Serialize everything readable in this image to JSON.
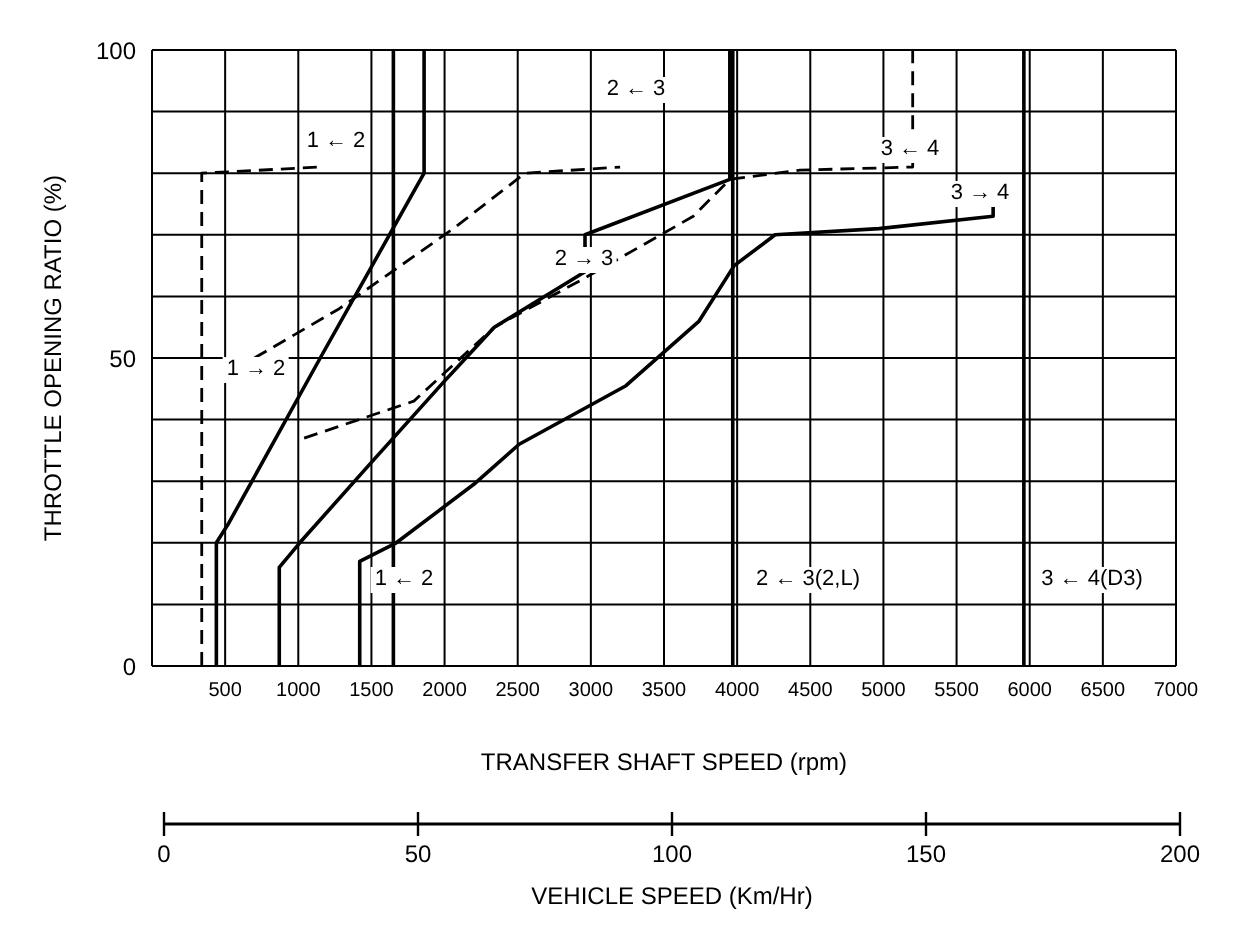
{
  "chart_data": {
    "type": "line",
    "xlabel": "TRANSFER SHAFT SPEED (rpm)",
    "ylabel": "THROTTLE OPENING RATIO (%)",
    "x2label": "VEHICLE SPEED (Km/Hr)",
    "xlim": [
      0,
      7000
    ],
    "xticks": [
      500,
      1000,
      1500,
      2000,
      2500,
      3000,
      3500,
      4000,
      4500,
      5000,
      5500,
      6000,
      6500,
      7000
    ],
    "ylim": [
      0,
      100
    ],
    "yticks": [
      0,
      {
        "value": 10,
        "label": null
      },
      {
        "value": 20,
        "label": null
      },
      {
        "value": 30,
        "label": null
      },
      {
        "value": 40,
        "label": null
      },
      50,
      {
        "value": 60,
        "label": null
      },
      {
        "value": 70,
        "label": null
      },
      {
        "value": 80,
        "label": null
      },
      {
        "value": 90,
        "label": null
      },
      100
    ],
    "x2lim": [
      0,
      200
    ],
    "x2ticks": [
      0,
      50,
      100,
      150,
      200
    ],
    "grid": true,
    "series": [
      {
        "color": "#000000",
        "line_style": "solid",
        "x": [
          440,
          440,
          520,
          1150,
          1860,
          1860
        ],
        "values": [
          0,
          20,
          23,
          50,
          80,
          100
        ]
      },
      {
        "color": "#000000",
        "line_style": "dashed",
        "x": [
          340,
          340,
          1150
        ],
        "values": [
          0,
          80,
          81
        ]
      },
      {
        "color": "#000000",
        "line_style": "dashed",
        "x": [
          700,
          1280,
          2060,
          2550,
          3200
        ],
        "values": [
          50,
          58,
          71,
          80,
          81
        ]
      },
      {
        "color": "#000000",
        "line_style": "dashed",
        "x": [
          1040,
          1790,
          2340,
          2960,
          3700,
          3950,
          4430,
          5200,
          5200
        ],
        "values": [
          37,
          43,
          55,
          63,
          73,
          79,
          80.5,
          81,
          100
        ]
      },
      {
        "color": "#000000",
        "line_style": "solid",
        "x": [
          870,
          870,
          1010,
          1460,
          1990,
          2340,
          2960,
          2960,
          3950,
          3950
        ],
        "values": [
          0,
          16,
          20,
          32,
          46,
          55,
          64,
          70,
          79,
          100
        ]
      },
      {
        "color": "#000000",
        "line_style": "solid",
        "x": [
          1420,
          1420,
          1670,
          2200,
          2510,
          3240,
          3740,
          3980,
          4260,
          4970,
          5750,
          5750
        ],
        "values": [
          0,
          17,
          20,
          29.5,
          36,
          45.5,
          56,
          65,
          70,
          71,
          73,
          75
        ]
      },
      {
        "color": "#000000",
        "line_style": "solid",
        "x": [
          1650,
          1650
        ],
        "values": [
          0,
          100
        ]
      },
      {
        "color": "#000000",
        "line_style": "solid",
        "x": [
          3970,
          3970
        ],
        "values": [
          0,
          100
        ]
      },
      {
        "color": "#000000",
        "line_style": "solid",
        "x": [
          5960,
          5960
        ],
        "values": [
          0,
          100
        ]
      }
    ],
    "annotations": [
      "1 ← 2",
      "2 ← 3",
      "3 ← 4",
      "3 → 4",
      "2 → 3",
      "1 → 2",
      "1 ← 2",
      "2 ← 3(2,L)",
      "3 ← 4(D3)"
    ]
  }
}
